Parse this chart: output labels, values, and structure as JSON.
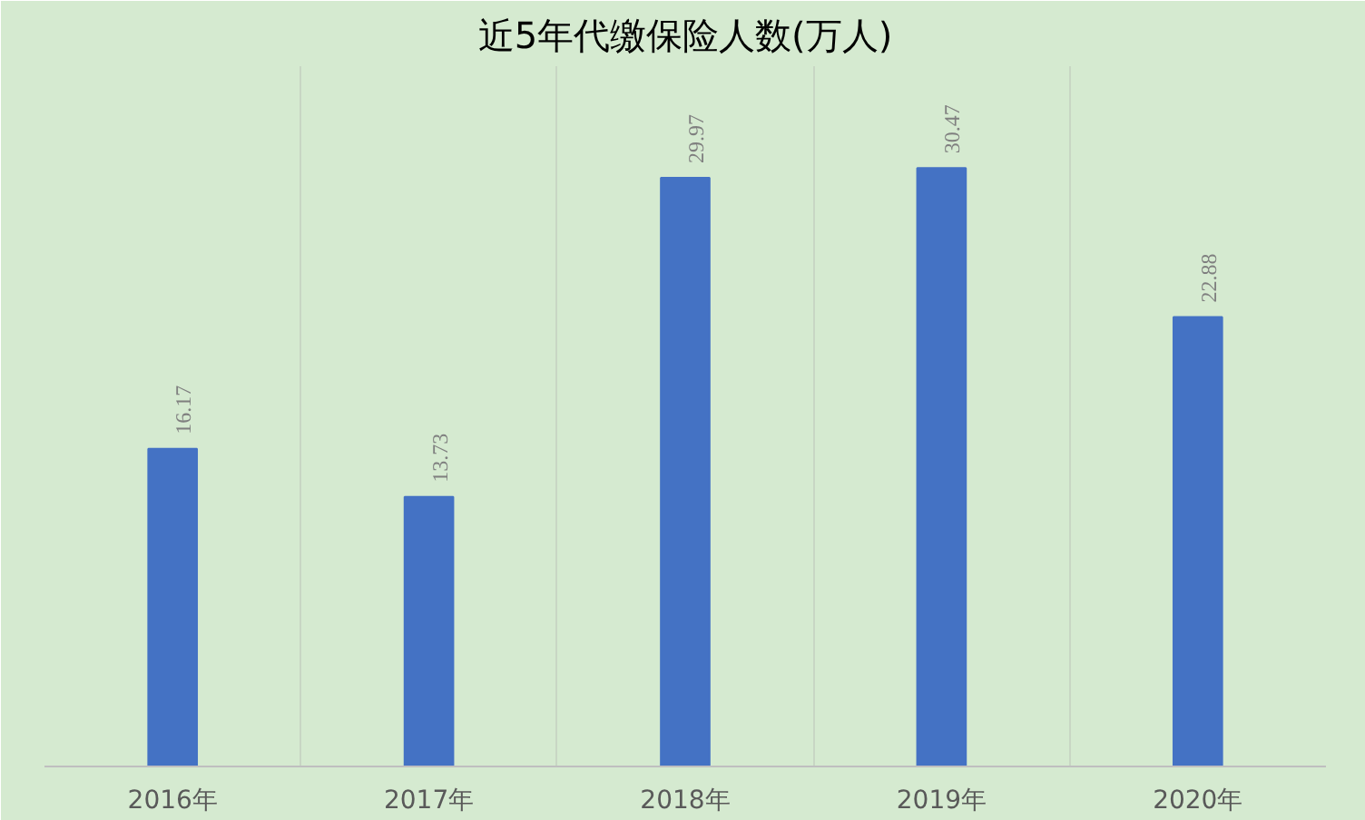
{
  "chart_data": {
    "type": "bar",
    "title": "近5年代缴保险人数(万人)",
    "categories": [
      "2016年",
      "2017年",
      "2018年",
      "2019年",
      "2020年"
    ],
    "values": [
      16.17,
      13.73,
      29.97,
      30.47,
      22.88
    ],
    "color": "#4472c4",
    "data_labels": true,
    "grid": "x"
  }
}
